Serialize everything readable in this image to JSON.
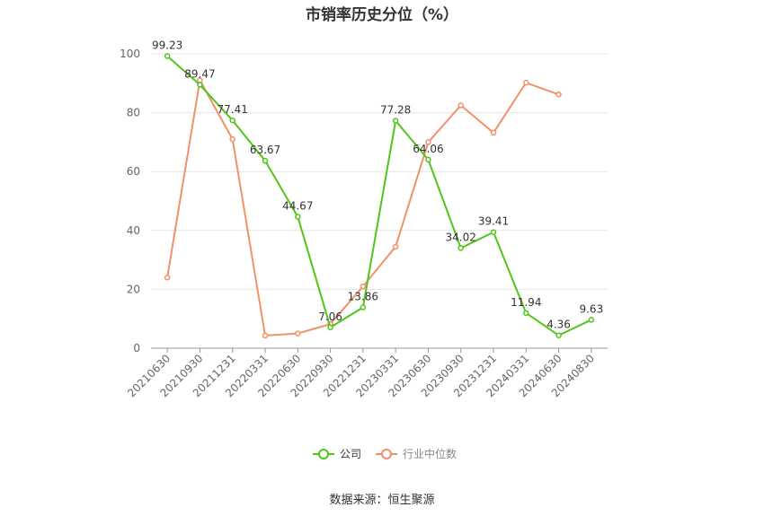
{
  "title": "市销率历史分位（%）",
  "source": "数据来源：恒生聚源",
  "chart_data": {
    "type": "line",
    "categories": [
      "20210630",
      "20210930",
      "20211231",
      "20220331",
      "20220630",
      "20220930",
      "20221231",
      "20230331",
      "20230630",
      "20230930",
      "20231231",
      "20240331",
      "20240630",
      "20240830"
    ],
    "y_ticks": [
      "0",
      "20",
      "40",
      "60",
      "80",
      "100"
    ],
    "ylim": [
      0,
      100
    ],
    "grid": true,
    "legend_position": "bottom",
    "series": [
      {
        "name": "公司",
        "color": "#52c41a",
        "values": [
          99.23,
          89.47,
          77.41,
          63.67,
          44.67,
          7.06,
          13.86,
          77.28,
          64.06,
          34.02,
          39.41,
          11.94,
          4.36,
          9.63
        ],
        "labels": [
          "99.23",
          "89.47",
          "77.41",
          "63.67",
          "44.67",
          "7.06",
          "13.86",
          "77.28",
          "64.06",
          "34.02",
          "39.41",
          "11.94",
          "4.36",
          "9.63"
        ]
      },
      {
        "name": "行业中位数",
        "color": "#f0916a",
        "values": [
          24,
          91,
          71,
          4.3,
          5.0,
          8.2,
          21,
          34.5,
          70,
          82.5,
          73.2,
          90.2,
          86.2,
          null
        ]
      }
    ]
  }
}
